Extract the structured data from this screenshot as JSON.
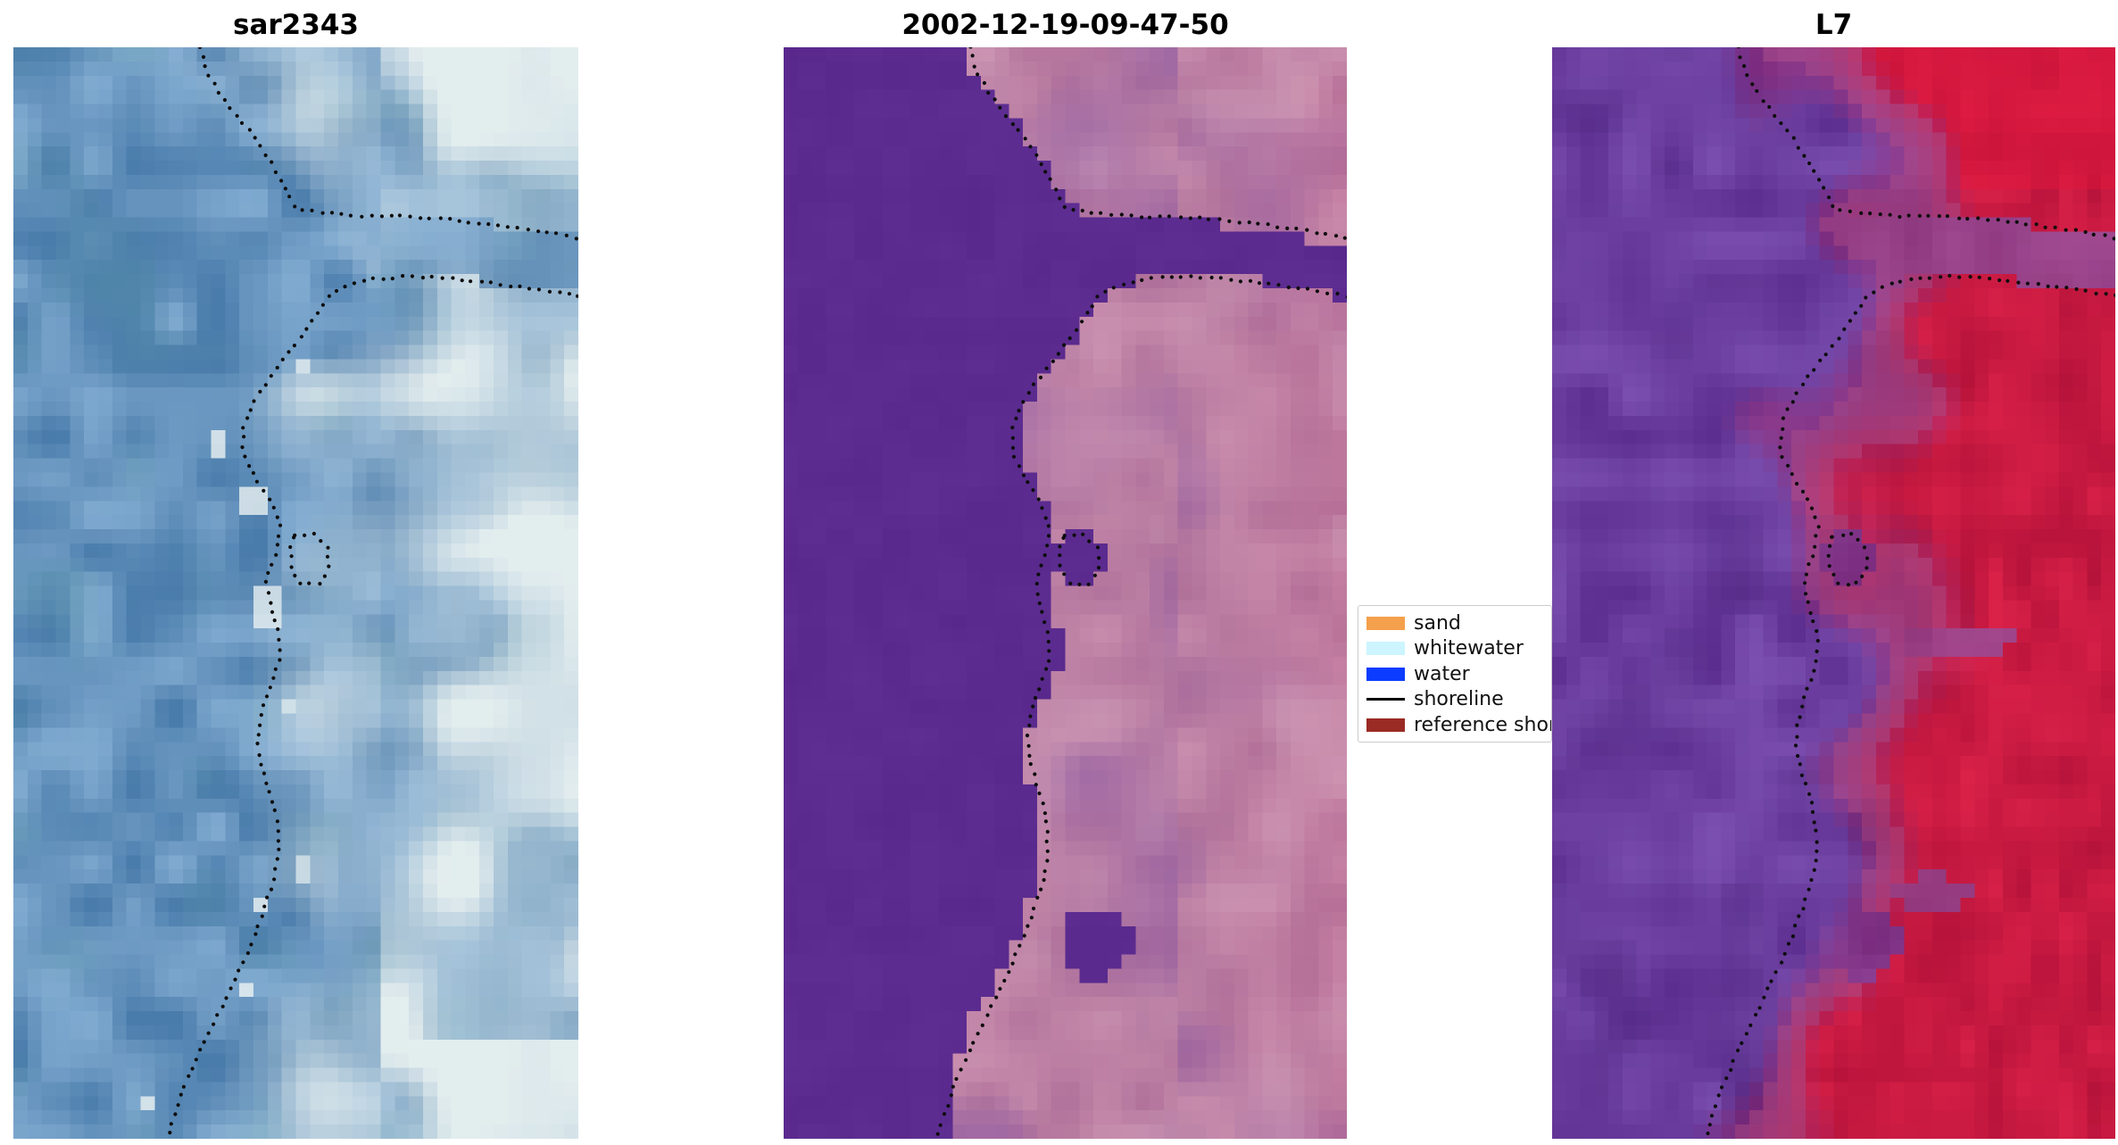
{
  "figure": {
    "background": "#ffffff",
    "panels": [
      {
        "id": "sar",
        "title": "sar2343",
        "render": "sar",
        "palette": {
          "water_dark": "#4a7cab",
          "water_light": "#7fa9cf",
          "teal": "#63a0a8",
          "land_light": "#eef4f3",
          "land_mid": "#b9d2dc"
        }
      },
      {
        "id": "classified",
        "title": "2002-12-19-09-47-50",
        "render": "classified",
        "palette": {
          "water": "#5b2b8f",
          "land_a": "#b0719a",
          "land_b": "#c98fae",
          "land_c": "#8f5aa0",
          "land_d": "#c2688f"
        }
      },
      {
        "id": "l7",
        "title": "L7",
        "render": "l7",
        "palette": {
          "purple_a": "#5b2d8e",
          "purple_b": "#7b4fb0",
          "purple_c": "#49227a",
          "red_a": "#b5123a",
          "red_b": "#da2148",
          "pink": "#bb5f93"
        }
      }
    ],
    "legend": {
      "border_color": "#cccccc",
      "items": [
        {
          "label": "sand",
          "color": "#f5a04c",
          "kind": "patch"
        },
        {
          "label": "whitewater",
          "color": "#ccf5ff",
          "kind": "patch"
        },
        {
          "label": "water",
          "color": "#0b3cff",
          "kind": "patch"
        },
        {
          "label": "shoreline",
          "color": "#000000",
          "kind": "line"
        },
        {
          "label": "reference shoreline",
          "color": "#9a2b24",
          "kind": "patch"
        }
      ]
    }
  },
  "chart_data": {
    "type": "heatmap",
    "title": "",
    "panel_titles": [
      "sar2343",
      "2002-12-19-09-47-50",
      "L7"
    ],
    "legend_entries": [
      "sand",
      "whitewater",
      "water",
      "shoreline",
      "reference shoreline"
    ],
    "axes": "hidden",
    "grid": false,
    "panels": [
      {
        "title": "sar2343",
        "modality": "SAR image, blue water with bright white land patches"
      },
      {
        "title": "2002-12-19-09-47-50",
        "modality": "classified optical image, flat purple water and pink/mauve land"
      },
      {
        "title": "L7",
        "modality": "Landsat-7 false colour, purple water and crimson land"
      }
    ],
    "main_path": [
      [
        0.33,
        0.0
      ],
      [
        0.345,
        0.025
      ],
      [
        0.375,
        0.05
      ],
      [
        0.415,
        0.075
      ],
      [
        0.45,
        0.1
      ],
      [
        0.478,
        0.125
      ],
      [
        0.5,
        0.148
      ],
      [
        0.528,
        0.188
      ],
      [
        0.558,
        0.228
      ],
      [
        0.515,
        0.262
      ],
      [
        0.47,
        0.292
      ],
      [
        0.432,
        0.318
      ],
      [
        0.408,
        0.345
      ],
      [
        0.405,
        0.372
      ],
      [
        0.428,
        0.395
      ],
      [
        0.455,
        0.415
      ],
      [
        0.472,
        0.438
      ],
      [
        0.465,
        0.462
      ],
      [
        0.448,
        0.488
      ],
      [
        0.455,
        0.512
      ],
      [
        0.47,
        0.535
      ],
      [
        0.472,
        0.558
      ],
      [
        0.458,
        0.582
      ],
      [
        0.44,
        0.608
      ],
      [
        0.432,
        0.635
      ],
      [
        0.442,
        0.662
      ],
      [
        0.458,
        0.688
      ],
      [
        0.468,
        0.715
      ],
      [
        0.47,
        0.742
      ],
      [
        0.458,
        0.768
      ],
      [
        0.44,
        0.795
      ],
      [
        0.422,
        0.82
      ],
      [
        0.4,
        0.845
      ],
      [
        0.375,
        0.872
      ],
      [
        0.35,
        0.898
      ],
      [
        0.325,
        0.925
      ],
      [
        0.302,
        0.952
      ],
      [
        0.285,
        0.978
      ],
      [
        0.272,
        1.0
      ]
    ],
    "inlet_top": [
      [
        0.5,
        0.148
      ],
      [
        0.56,
        0.152
      ],
      [
        0.62,
        0.155
      ],
      [
        0.7,
        0.155
      ],
      [
        0.78,
        0.158
      ],
      [
        0.86,
        0.163
      ],
      [
        0.93,
        0.168
      ],
      [
        1.0,
        0.175
      ]
    ],
    "inlet_bottom": [
      [
        0.558,
        0.228
      ],
      [
        0.59,
        0.218
      ],
      [
        0.64,
        0.212
      ],
      [
        0.7,
        0.21
      ],
      [
        0.78,
        0.212
      ],
      [
        0.86,
        0.217
      ],
      [
        0.93,
        0.222
      ],
      [
        1.0,
        0.228
      ]
    ],
    "shoreline_segments": [
      [
        [
          0.33,
          0.0
        ],
        [
          0.345,
          0.025
        ],
        [
          0.375,
          0.05
        ],
        [
          0.415,
          0.075
        ],
        [
          0.45,
          0.1
        ],
        [
          0.478,
          0.125
        ],
        [
          0.5,
          0.148
        ],
        [
          0.56,
          0.152
        ],
        [
          0.62,
          0.155
        ],
        [
          0.7,
          0.155
        ],
        [
          0.78,
          0.158
        ],
        [
          0.86,
          0.163
        ],
        [
          0.93,
          0.168
        ],
        [
          1.0,
          0.175
        ]
      ],
      [
        [
          1.0,
          0.228
        ],
        [
          0.93,
          0.222
        ],
        [
          0.86,
          0.217
        ],
        [
          0.78,
          0.212
        ],
        [
          0.7,
          0.21
        ],
        [
          0.64,
          0.212
        ],
        [
          0.59,
          0.218
        ],
        [
          0.558,
          0.228
        ],
        [
          0.515,
          0.262
        ],
        [
          0.47,
          0.292
        ],
        [
          0.432,
          0.318
        ],
        [
          0.408,
          0.345
        ],
        [
          0.405,
          0.372
        ],
        [
          0.428,
          0.395
        ],
        [
          0.455,
          0.415
        ],
        [
          0.472,
          0.438
        ],
        [
          0.465,
          0.462
        ],
        [
          0.448,
          0.488
        ],
        [
          0.455,
          0.512
        ],
        [
          0.47,
          0.535
        ],
        [
          0.472,
          0.558
        ],
        [
          0.458,
          0.582
        ],
        [
          0.44,
          0.608
        ],
        [
          0.432,
          0.635
        ],
        [
          0.442,
          0.662
        ],
        [
          0.458,
          0.688
        ],
        [
          0.468,
          0.715
        ],
        [
          0.47,
          0.742
        ],
        [
          0.458,
          0.768
        ],
        [
          0.44,
          0.795
        ],
        [
          0.422,
          0.82
        ],
        [
          0.4,
          0.845
        ],
        [
          0.375,
          0.872
        ],
        [
          0.35,
          0.898
        ],
        [
          0.325,
          0.925
        ],
        [
          0.302,
          0.952
        ],
        [
          0.285,
          0.978
        ],
        [
          0.272,
          1.0
        ]
      ],
      [
        [
          0.498,
          0.448
        ],
        [
          0.53,
          0.445
        ],
        [
          0.556,
          0.458
        ],
        [
          0.56,
          0.478
        ],
        [
          0.54,
          0.492
        ],
        [
          0.51,
          0.492
        ],
        [
          0.492,
          0.478
        ],
        [
          0.49,
          0.46
        ],
        [
          0.498,
          0.448
        ]
      ]
    ],
    "water_patches": [
      {
        "cx": 0.525,
        "cy": 0.468,
        "rx": 0.042,
        "ry": 0.027
      },
      {
        "cx": 0.555,
        "cy": 0.822,
        "rx": 0.062,
        "ry": 0.032
      }
    ],
    "l7_patches": [
      {
        "cx": 0.72,
        "cy": 0.545,
        "rx": 0.1,
        "ry": 0.018
      },
      {
        "cx": 0.67,
        "cy": 0.775,
        "rx": 0.07,
        "ry": 0.016
      }
    ]
  }
}
